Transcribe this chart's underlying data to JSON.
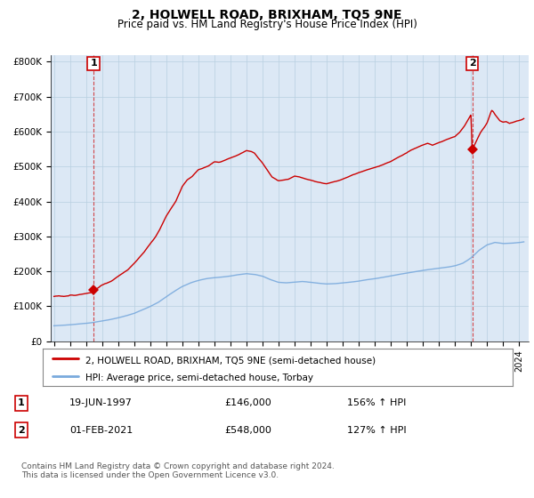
{
  "title": "2, HOLWELL ROAD, BRIXHAM, TQ5 9NE",
  "subtitle": "Price paid vs. HM Land Registry's House Price Index (HPI)",
  "property_label": "2, HOLWELL ROAD, BRIXHAM, TQ5 9NE (semi-detached house)",
  "hpi_label": "HPI: Average price, semi-detached house, Torbay",
  "property_color": "#cc0000",
  "hpi_color": "#7aaadd",
  "background_color": "#dce8f5",
  "grid_color": "#b8cfe0",
  "sale1_date": 1997.47,
  "sale1_price": 146000,
  "sale1_label": "1",
  "sale2_date": 2021.08,
  "sale2_price": 548000,
  "sale2_label": "2",
  "ylim": [
    0,
    820000
  ],
  "xlim_start": 1994.8,
  "xlim_end": 2024.6,
  "footer": "Contains HM Land Registry data © Crown copyright and database right 2024.\nThis data is licensed under the Open Government Licence v3.0.",
  "table_rows": [
    [
      "1",
      "19-JUN-1997",
      "£146,000",
      "156% ↑ HPI"
    ],
    [
      "2",
      "01-FEB-2021",
      "£548,000",
      "127% ↑ HPI"
    ]
  ],
  "hpi_points": [
    [
      1995.0,
      44000
    ],
    [
      1995.5,
      45500
    ],
    [
      1996.0,
      47000
    ],
    [
      1996.5,
      49000
    ],
    [
      1997.0,
      51000
    ],
    [
      1997.5,
      54000
    ],
    [
      1998.0,
      58000
    ],
    [
      1998.5,
      62000
    ],
    [
      1999.0,
      67000
    ],
    [
      1999.5,
      73000
    ],
    [
      2000.0,
      80000
    ],
    [
      2000.5,
      90000
    ],
    [
      2001.0,
      100000
    ],
    [
      2001.5,
      112000
    ],
    [
      2002.0,
      128000
    ],
    [
      2002.5,
      144000
    ],
    [
      2003.0,
      158000
    ],
    [
      2003.5,
      168000
    ],
    [
      2004.0,
      175000
    ],
    [
      2004.5,
      180000
    ],
    [
      2005.0,
      183000
    ],
    [
      2005.5,
      185000
    ],
    [
      2006.0,
      188000
    ],
    [
      2006.5,
      192000
    ],
    [
      2007.0,
      195000
    ],
    [
      2007.5,
      193000
    ],
    [
      2008.0,
      188000
    ],
    [
      2008.5,
      178000
    ],
    [
      2009.0,
      170000
    ],
    [
      2009.5,
      168000
    ],
    [
      2010.0,
      170000
    ],
    [
      2010.5,
      172000
    ],
    [
      2011.0,
      170000
    ],
    [
      2011.5,
      167000
    ],
    [
      2012.0,
      165000
    ],
    [
      2012.5,
      166000
    ],
    [
      2013.0,
      168000
    ],
    [
      2013.5,
      170000
    ],
    [
      2014.0,
      173000
    ],
    [
      2014.5,
      177000
    ],
    [
      2015.0,
      180000
    ],
    [
      2015.5,
      184000
    ],
    [
      2016.0,
      188000
    ],
    [
      2016.5,
      192000
    ],
    [
      2017.0,
      196000
    ],
    [
      2017.5,
      200000
    ],
    [
      2018.0,
      204000
    ],
    [
      2018.5,
      207000
    ],
    [
      2019.0,
      210000
    ],
    [
      2019.5,
      213000
    ],
    [
      2020.0,
      217000
    ],
    [
      2020.5,
      225000
    ],
    [
      2021.0,
      240000
    ],
    [
      2021.5,
      262000
    ],
    [
      2022.0,
      278000
    ],
    [
      2022.5,
      285000
    ],
    [
      2023.0,
      282000
    ],
    [
      2023.5,
      283000
    ],
    [
      2024.0,
      285000
    ],
    [
      2024.3,
      287000
    ]
  ],
  "prop_points": [
    [
      1995.0,
      128000
    ],
    [
      1995.3,
      130000
    ],
    [
      1995.6,
      129000
    ],
    [
      1995.9,
      131000
    ],
    [
      1996.0,
      133000
    ],
    [
      1996.3,
      132000
    ],
    [
      1996.6,
      134000
    ],
    [
      1996.9,
      136000
    ],
    [
      1997.0,
      137000
    ],
    [
      1997.3,
      139000
    ],
    [
      1997.47,
      146000
    ],
    [
      1997.7,
      151000
    ],
    [
      1998.0,
      162000
    ],
    [
      1998.3,
      167000
    ],
    [
      1998.6,
      172000
    ],
    [
      1999.0,
      186000
    ],
    [
      1999.3,
      195000
    ],
    [
      1999.6,
      204000
    ],
    [
      2000.0,
      222000
    ],
    [
      2000.3,
      238000
    ],
    [
      2000.6,
      253000
    ],
    [
      2001.0,
      278000
    ],
    [
      2001.3,
      295000
    ],
    [
      2001.6,
      318000
    ],
    [
      2002.0,
      356000
    ],
    [
      2002.3,
      378000
    ],
    [
      2002.6,
      398000
    ],
    [
      2003.0,
      440000
    ],
    [
      2003.3,
      458000
    ],
    [
      2003.6,
      467000
    ],
    [
      2004.0,
      487000
    ],
    [
      2004.3,
      492000
    ],
    [
      2004.6,
      497000
    ],
    [
      2005.0,
      510000
    ],
    [
      2005.3,
      509000
    ],
    [
      2005.5,
      512000
    ],
    [
      2006.0,
      522000
    ],
    [
      2006.3,
      527000
    ],
    [
      2006.6,
      533000
    ],
    [
      2007.0,
      543000
    ],
    [
      2007.3,
      540000
    ],
    [
      2007.5,
      536000
    ],
    [
      2007.7,
      524000
    ],
    [
      2008.0,
      508000
    ],
    [
      2008.3,
      488000
    ],
    [
      2008.6,
      468000
    ],
    [
      2009.0,
      458000
    ],
    [
      2009.3,
      460000
    ],
    [
      2009.6,
      462000
    ],
    [
      2010.0,
      471000
    ],
    [
      2010.3,
      469000
    ],
    [
      2010.6,
      465000
    ],
    [
      2011.0,
      460000
    ],
    [
      2011.3,
      456000
    ],
    [
      2011.6,
      454000
    ],
    [
      2012.0,
      450000
    ],
    [
      2012.3,
      454000
    ],
    [
      2012.6,
      458000
    ],
    [
      2013.0,
      464000
    ],
    [
      2013.3,
      470000
    ],
    [
      2013.6,
      477000
    ],
    [
      2014.0,
      483000
    ],
    [
      2014.3,
      488000
    ],
    [
      2014.6,
      492000
    ],
    [
      2015.0,
      498000
    ],
    [
      2015.3,
      503000
    ],
    [
      2015.6,
      508000
    ],
    [
      2016.0,
      516000
    ],
    [
      2016.3,
      524000
    ],
    [
      2016.6,
      531000
    ],
    [
      2017.0,
      540000
    ],
    [
      2017.3,
      548000
    ],
    [
      2017.6,
      554000
    ],
    [
      2018.0,
      562000
    ],
    [
      2018.3,
      567000
    ],
    [
      2018.6,
      561000
    ],
    [
      2019.0,
      569000
    ],
    [
      2019.3,
      574000
    ],
    [
      2019.6,
      580000
    ],
    [
      2020.0,
      586000
    ],
    [
      2020.3,
      598000
    ],
    [
      2020.6,
      617000
    ],
    [
      2021.0,
      648000
    ],
    [
      2021.08,
      548000
    ],
    [
      2021.3,
      570000
    ],
    [
      2021.6,
      598000
    ],
    [
      2022.0,
      625000
    ],
    [
      2022.1,
      638000
    ],
    [
      2022.2,
      652000
    ],
    [
      2022.3,
      662000
    ],
    [
      2022.4,
      658000
    ],
    [
      2022.5,
      650000
    ],
    [
      2022.6,
      644000
    ],
    [
      2022.7,
      638000
    ],
    [
      2022.8,
      632000
    ],
    [
      2023.0,
      628000
    ],
    [
      2023.2,
      630000
    ],
    [
      2023.4,
      625000
    ],
    [
      2023.6,
      627000
    ],
    [
      2023.8,
      630000
    ],
    [
      2024.0,
      632000
    ],
    [
      2024.2,
      635000
    ],
    [
      2024.3,
      637000
    ]
  ]
}
